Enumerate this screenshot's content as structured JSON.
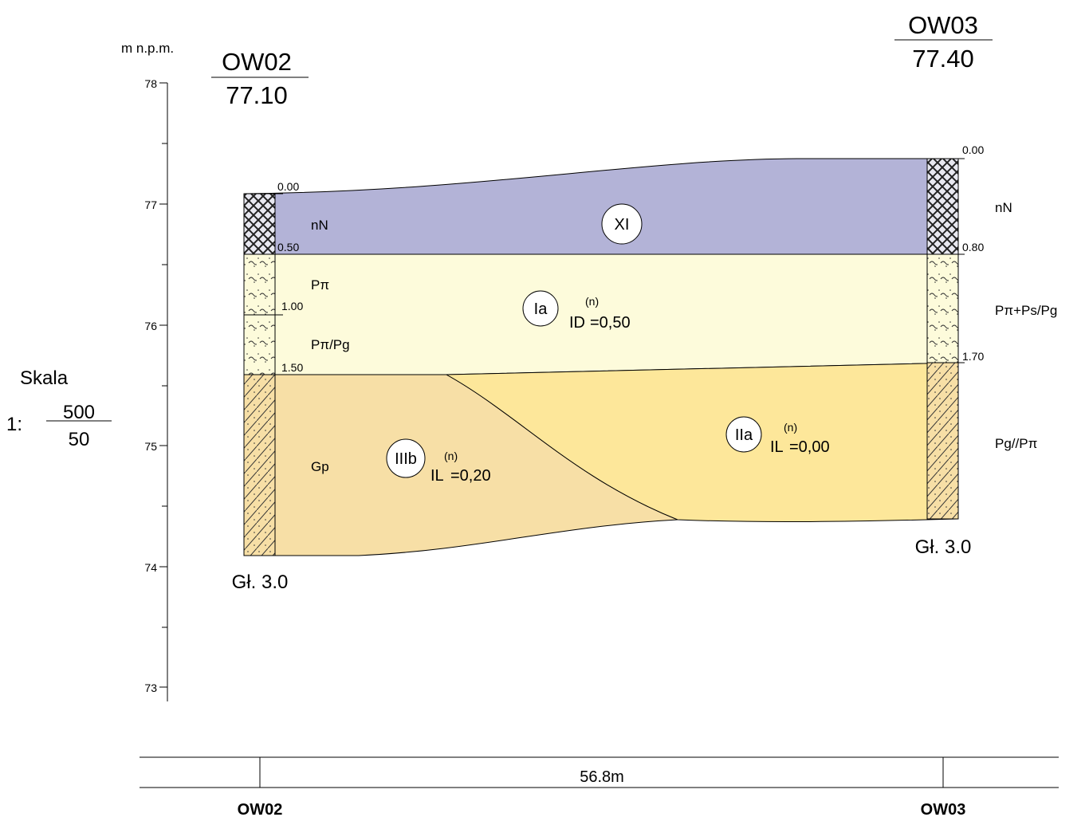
{
  "axis": {
    "unit": "m n.p.m.",
    "ticks": [
      "78",
      "77",
      "76",
      "75",
      "74",
      "73"
    ]
  },
  "boreholes": [
    {
      "name": "OW02",
      "elevation": "77.10",
      "depths": [
        "0.00",
        "0.50",
        "1.00",
        "1.50"
      ],
      "final_depth": "Gł. 3.0",
      "layers": [
        "nN",
        "Pπ",
        "Pπ/Pg",
        "Gp"
      ]
    },
    {
      "name": "OW03",
      "elevation": "77.40",
      "depths": [
        "0.00",
        "0.80",
        "1.70"
      ],
      "final_depth": "Gł. 3.0",
      "layers": [
        "nN",
        "Pπ+Ps/Pg",
        "Pg//Pπ"
      ]
    }
  ],
  "units": [
    {
      "id": "XI"
    },
    {
      "id": "Ia",
      "param": "ID",
      "sup": "(n)",
      "value": "=0,50"
    },
    {
      "id": "IIIb",
      "param": "IL",
      "sup": "(n)",
      "value": "=0,20"
    },
    {
      "id": "IIa",
      "param": "IL",
      "sup": "(n)",
      "value": "=0,00"
    }
  ],
  "scale": {
    "label": "Skala",
    "prefix": "1:",
    "horizontal": "500",
    "vertical": "50"
  },
  "distance": {
    "value": "56.8m",
    "from": "OW02",
    "to": "OW03"
  }
}
